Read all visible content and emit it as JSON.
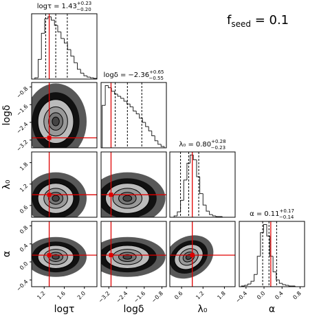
{
  "chart_data": {
    "type": "corner",
    "annotation": {
      "text": "f",
      "sub": "seed",
      "rest": " = 0.1"
    },
    "truth_color": "#e00000",
    "params": [
      {
        "label": "logτ",
        "title": "logτ =",
        "median": 1.43,
        "plus": {
          "value": 0.23,
          "label": "+0.23"
        },
        "minus": {
          "value": 0.2,
          "label": "−0.20"
        },
        "truth": 1.3,
        "lim": [
          0.95,
          2.25
        ],
        "ticks": [
          1.2,
          1.6,
          {
            "value": 2.0,
            "label": "2.0"
          }
        ],
        "bins": [
          0.95,
          1.015,
          1.08,
          1.145,
          1.21,
          1.275,
          1.34,
          1.405,
          1.47,
          1.535,
          1.6,
          1.665,
          1.73,
          1.795,
          1.86,
          1.925,
          1.99,
          2.055,
          2.12,
          2.185,
          2.25
        ],
        "counts": [
          0,
          2,
          30,
          70,
          92,
          95,
          90,
          82,
          72,
          62,
          55,
          45,
          35,
          25,
          15,
          9,
          5,
          3,
          2,
          1
        ]
      },
      {
        "label": "logδ",
        "title": "logδ =",
        "median": {
          "value": -2.36,
          "label": "−2.36"
        },
        "plus": {
          "value": 0.65,
          "label": "+0.65"
        },
        "minus": {
          "value": 0.55,
          "label": "−0.55"
        },
        "truth": -3.1,
        "lim": [
          -3.55,
          -0.6
        ],
        "ticks": [
          {
            "value": -3.2,
            "label": "−3.2"
          },
          {
            "value": -2.4,
            "label": "−2.4"
          },
          {
            "value": -1.6,
            "label": "−1.6"
          },
          {
            "value": -0.8,
            "label": "−0.8"
          }
        ],
        "bins": [
          -3.5,
          -3.36,
          -3.22,
          -3.08,
          -2.94,
          -2.8,
          -2.66,
          -2.52,
          -2.38,
          -2.24,
          -2.1,
          -1.96,
          -1.82,
          -1.68,
          -1.54,
          -1.4,
          -1.26,
          -1.12,
          -0.98,
          -0.84,
          -0.7
        ],
        "counts": [
          60,
          88,
          85,
          80,
          76,
          73,
          70,
          66,
          62,
          58,
          52,
          48,
          42,
          36,
          30,
          24,
          17,
          10,
          5,
          2
        ]
      },
      {
        "label": "λ₀",
        "title": "λ₀ =",
        "median": {
          "value": 0.8,
          "label": "0.80"
        },
        "plus": {
          "value": 0.28,
          "label": "+0.28"
        },
        "minus": {
          "value": 0.23,
          "label": "−0.23"
        },
        "truth": 0.9,
        "lim": [
          0.27,
          2.1
        ],
        "ticks": [
          0.6,
          1.2,
          1.8
        ],
        "bins": [
          0.3,
          0.39,
          0.48,
          0.57,
          0.66,
          0.75,
          0.84,
          0.93,
          1.02,
          1.11,
          1.2,
          1.29,
          1.38,
          1.47,
          1.56,
          1.65,
          1.74,
          1.83,
          1.92,
          2.01,
          2.1
        ],
        "counts": [
          0,
          2,
          8,
          25,
          55,
          80,
          92,
          85,
          60,
          35,
          18,
          9,
          4,
          2,
          1,
          1,
          0,
          0,
          0,
          0
        ]
      },
      {
        "label": "α",
        "title": "α =",
        "median": 0.11,
        "plus": {
          "value": 0.17,
          "label": "+0.17"
        },
        "minus": {
          "value": 0.14,
          "label": "−0.14"
        },
        "truth": 0.15,
        "lim": [
          -0.55,
          0.9
        ],
        "ticks": [
          {
            "value": -0.4,
            "label": "−0.4"
          },
          {
            "value": 0,
            "label": "0.0"
          },
          0.4,
          0.8
        ],
        "bins": [
          -0.5,
          -0.43,
          -0.36,
          -0.29,
          -0.22,
          -0.15,
          -0.08,
          -0.01,
          0.06,
          0.13,
          0.2,
          0.27,
          0.34,
          0.41,
          0.48,
          0.55,
          0.62,
          0.69,
          0.76,
          0.83,
          0.9
        ],
        "counts": [
          1,
          2,
          4,
          8,
          18,
          45,
          80,
          92,
          75,
          45,
          22,
          10,
          5,
          3,
          2,
          1,
          1,
          0,
          0,
          0
        ]
      }
    ]
  }
}
